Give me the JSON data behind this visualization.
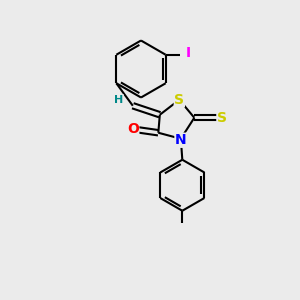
{
  "bg_color": "#ebebeb",
  "bond_color": "#000000",
  "atom_colors": {
    "S1": "#cccc00",
    "S_thione": "#cccc00",
    "N": "#0000ff",
    "O": "#ff0000",
    "I": "#ff00ff",
    "H": "#008888"
  },
  "lw": 1.5,
  "fs": 10,
  "xlim": [
    0,
    10
  ],
  "ylim": [
    0,
    10
  ]
}
